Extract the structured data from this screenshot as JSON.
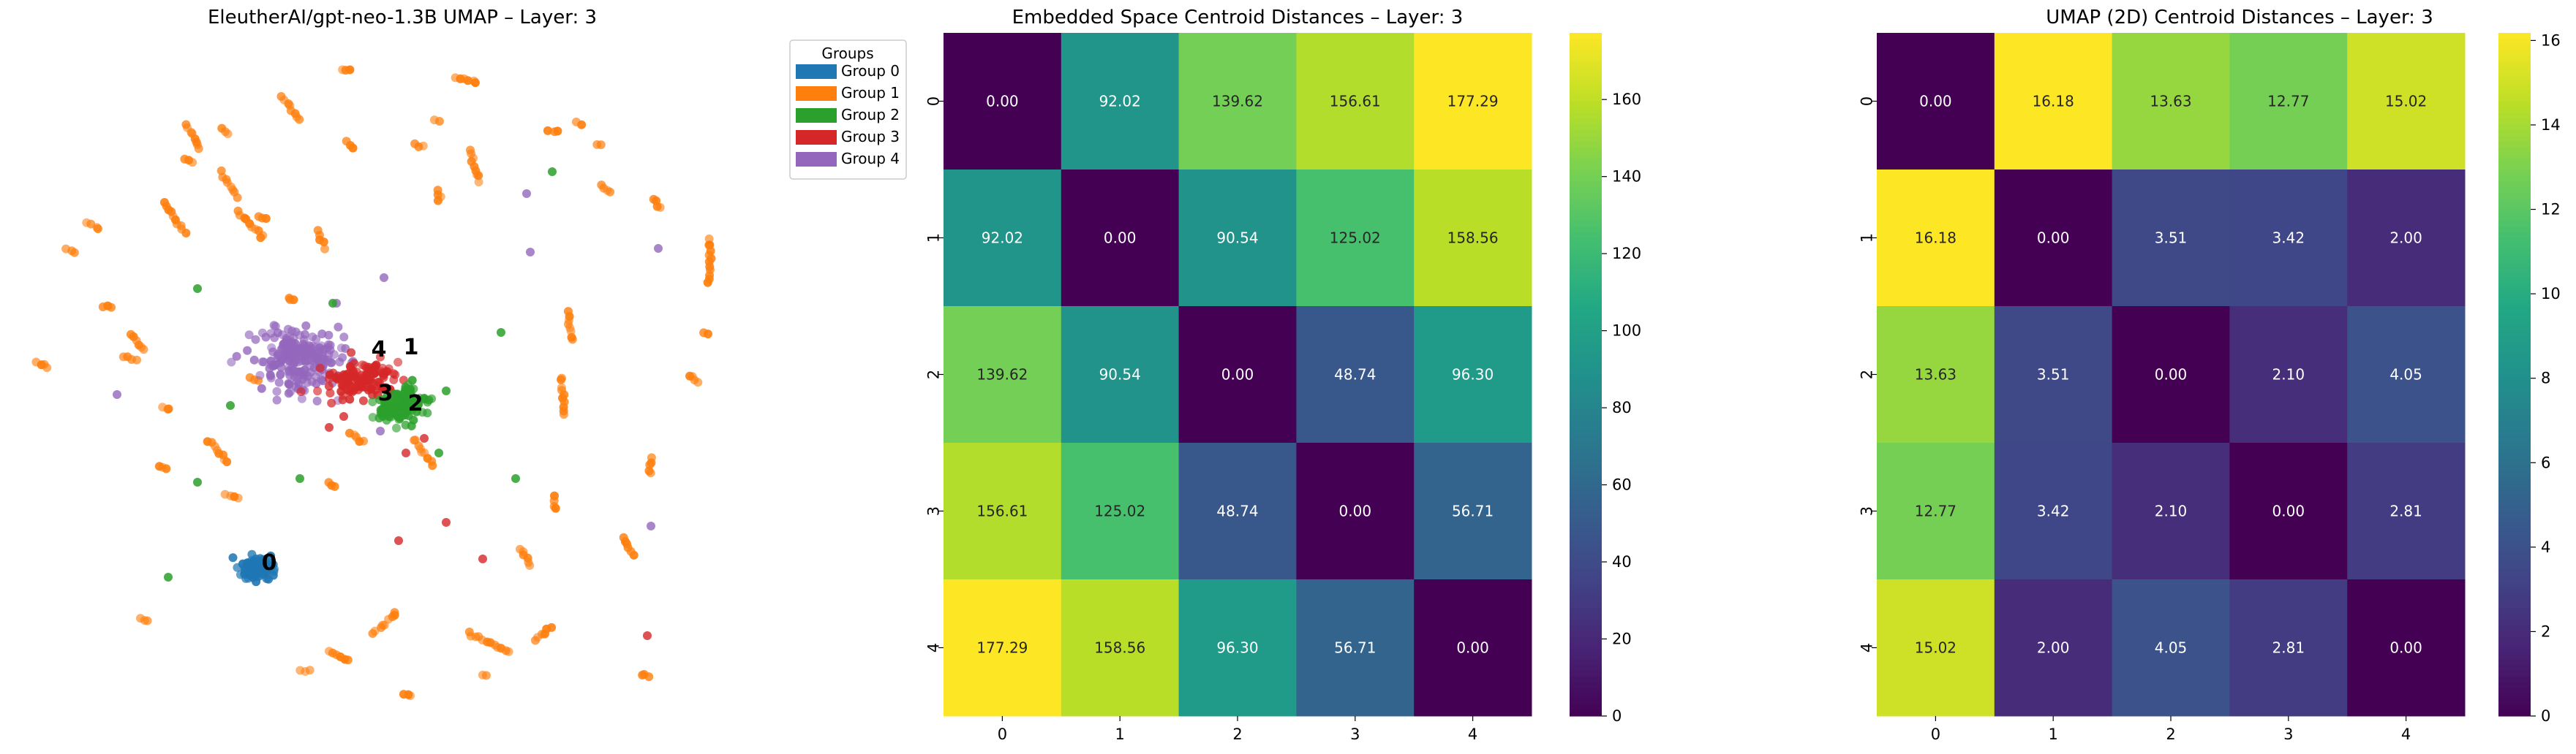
{
  "chart_data": [
    {
      "type": "scatter",
      "title": "EleutherAI/gpt-neo-1.3B UMAP – Layer: 3",
      "legend": {
        "title": "Groups",
        "placement": "outside-right",
        "entries": [
          {
            "label": "Group 0",
            "color": "#1f77b4"
          },
          {
            "label": "Group 1",
            "color": "#ff7f0e"
          },
          {
            "label": "Group 2",
            "color": "#2ca02c"
          },
          {
            "label": "Group 3",
            "color": "#d62728"
          },
          {
            "label": "Group 4",
            "color": "#9467bd"
          }
        ]
      },
      "axes_visible": false,
      "centroid_labels": [
        "0",
        "1",
        "2",
        "3",
        "4"
      ]
    },
    {
      "type": "heatmap",
      "title": "Embedded Space Centroid Distances – Layer: 3",
      "x_ticks": [
        "0",
        "1",
        "2",
        "3",
        "4"
      ],
      "y_ticks": [
        "0",
        "1",
        "2",
        "3",
        "4"
      ],
      "colormap": "viridis",
      "vmin": 0,
      "vmax": 177.29,
      "colorbar_ticks": [
        0,
        20,
        40,
        60,
        80,
        100,
        120,
        140,
        160
      ],
      "values": [
        [
          0.0,
          92.02,
          139.62,
          156.61,
          177.29
        ],
        [
          92.02,
          0.0,
          90.54,
          125.02,
          158.56
        ],
        [
          139.62,
          90.54,
          0.0,
          48.74,
          96.3
        ],
        [
          156.61,
          125.02,
          48.74,
          0.0,
          56.71
        ],
        [
          177.29,
          158.56,
          96.3,
          56.71,
          0.0
        ]
      ]
    },
    {
      "type": "heatmap",
      "title": "UMAP (2D) Centroid Distances – Layer: 3",
      "x_ticks": [
        "0",
        "1",
        "2",
        "3",
        "4"
      ],
      "y_ticks": [
        "0",
        "1",
        "2",
        "3",
        "4"
      ],
      "colormap": "viridis",
      "vmin": 0,
      "vmax": 16.18,
      "colorbar_ticks": [
        0,
        2,
        4,
        6,
        8,
        10,
        12,
        14,
        16
      ],
      "values": [
        [
          0.0,
          16.18,
          13.63,
          12.77,
          15.02
        ],
        [
          16.18,
          0.0,
          3.51,
          3.42,
          2.0
        ],
        [
          13.63,
          3.51,
          0.0,
          2.1,
          4.05
        ],
        [
          12.77,
          3.42,
          2.1,
          0.0,
          2.81
        ],
        [
          15.02,
          2.0,
          4.05,
          2.81,
          0.0
        ]
      ]
    }
  ]
}
